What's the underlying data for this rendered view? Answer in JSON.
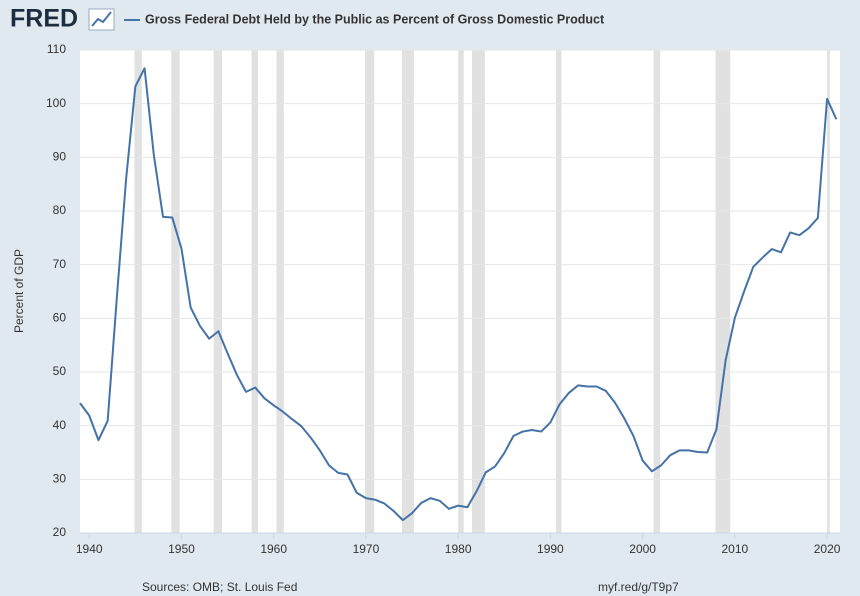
{
  "logo": "FRED",
  "chart_data": {
    "type": "line",
    "ylabel": "Percent of GDP",
    "source": "Sources: OMB; St. Louis Fed",
    "link": "myf.red/g/T9p7",
    "x": [
      1939,
      1940,
      1941,
      1942,
      1943,
      1944,
      1945,
      1946,
      1947,
      1948,
      1949,
      1950,
      1951,
      1952,
      1953,
      1954,
      1955,
      1956,
      1957,
      1958,
      1959,
      1960,
      1961,
      1962,
      1963,
      1964,
      1965,
      1966,
      1967,
      1968,
      1969,
      1970,
      1971,
      1972,
      1973,
      1974,
      1975,
      1976,
      1977,
      1978,
      1979,
      1980,
      1981,
      1982,
      1983,
      1984,
      1985,
      1986,
      1987,
      1988,
      1989,
      1990,
      1991,
      1992,
      1993,
      1994,
      1995,
      1996,
      1997,
      1998,
      1999,
      2000,
      2001,
      2002,
      2003,
      2004,
      2005,
      2006,
      2007,
      2008,
      2009,
      2010,
      2011,
      2012,
      2013,
      2014,
      2015,
      2016,
      2017,
      2018,
      2019,
      2020,
      2021
    ],
    "series": [
      {
        "name": "Gross Federal Debt Held by the Public as Percent of Gross Domestic Product",
        "color": "#4572a7",
        "values": [
          44.2,
          41.9,
          37.3,
          40.9,
          64,
          86,
          103.2,
          106.6,
          90.5,
          78.9,
          78.8,
          73,
          62,
          58.6,
          56.2,
          57.6,
          53.5,
          49.5,
          46.3,
          47.1,
          45.1,
          43.8,
          42.6,
          41.2,
          39.9,
          37.8,
          35.4,
          32.6,
          31.2,
          30.9,
          27.5,
          26.5,
          26.2,
          25.5,
          24.1,
          22.4,
          23.7,
          25.6,
          26.5,
          26,
          24.5,
          25.1,
          24.8,
          27.8,
          31.3,
          32.4,
          34.9,
          38.1,
          38.9,
          39.2,
          38.9,
          40.6,
          44,
          46.1,
          47.5,
          47.3,
          47.3,
          46.5,
          44.3,
          41.4,
          38.1,
          33.5,
          31.5,
          32.6,
          34.5,
          35.4,
          35.4,
          35.1,
          35,
          39.3,
          52.2,
          60.1,
          65,
          69.6,
          71.3,
          72.9,
          72.3,
          76,
          75.5,
          76.8,
          78.7,
          100.9,
          97.1
        ]
      }
    ],
    "recessions": [
      [
        1944.9,
        1945.7
      ],
      [
        1948.9,
        1949.8
      ],
      [
        1953.5,
        1954.4
      ],
      [
        1957.6,
        1958.3
      ],
      [
        1960.3,
        1961.1
      ],
      [
        1969.9,
        1970.9
      ],
      [
        1973.9,
        1975.2
      ],
      [
        1980,
        1980.6
      ],
      [
        1981.5,
        1982.9
      ],
      [
        1990.6,
        1991.2
      ],
      [
        2001.2,
        2001.9
      ],
      [
        2007.9,
        2009.5
      ],
      [
        2020,
        2020.3
      ]
    ],
    "recession_color": "#e1e1e1",
    "xlim": [
      1939,
      2021.4
    ],
    "ylim": [
      20,
      110
    ],
    "xticks": [
      1940,
      1950,
      1960,
      1970,
      1980,
      1990,
      2000,
      2010,
      2020
    ],
    "yticks": [
      20,
      30,
      40,
      50,
      60,
      70,
      80,
      90,
      100,
      110
    ],
    "grid": true
  }
}
